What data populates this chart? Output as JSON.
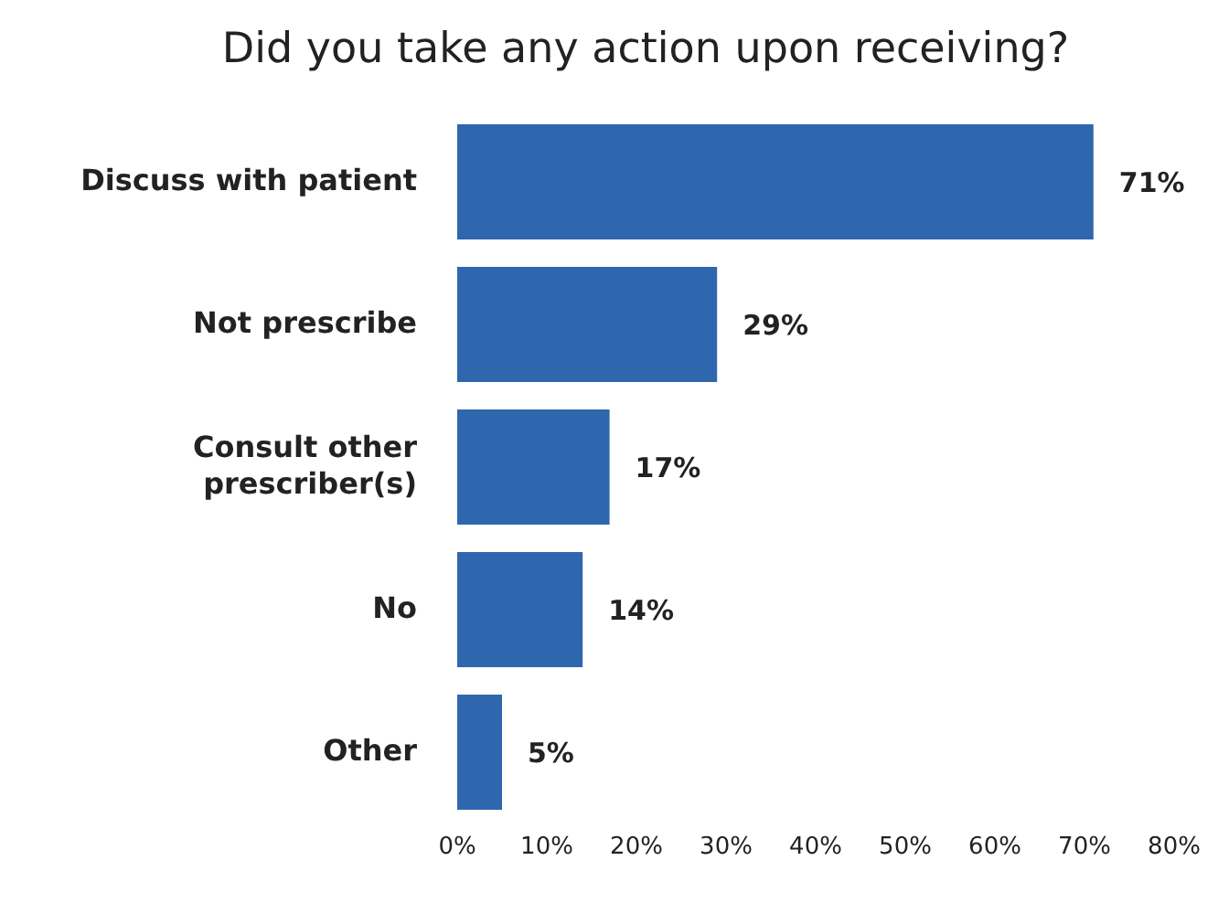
{
  "chart_data": {
    "type": "bar",
    "orientation": "horizontal",
    "title": "Did you take any action upon receiving?",
    "categories": [
      "Discuss with patient",
      "Not prescribe",
      "Consult other prescriber(s)",
      "No",
      "Other"
    ],
    "values": [
      71,
      29,
      17,
      14,
      5
    ],
    "value_labels": [
      "71%",
      "29%",
      "17%",
      "14%",
      "5%"
    ],
    "color": "#2e67ad",
    "xlim": [
      0,
      80
    ],
    "xticks": [
      {
        "value": 0,
        "label": "0%"
      },
      {
        "value": 10,
        "label": "10%"
      },
      {
        "value": 20,
        "label": "20%"
      },
      {
        "value": 30,
        "label": "30%"
      },
      {
        "value": 40,
        "label": "40%"
      },
      {
        "value": 50,
        "label": "50%"
      },
      {
        "value": 60,
        "label": "60%"
      },
      {
        "value": 70,
        "label": "70%"
      },
      {
        "value": 80,
        "label": "80%"
      }
    ],
    "grid": false
  }
}
